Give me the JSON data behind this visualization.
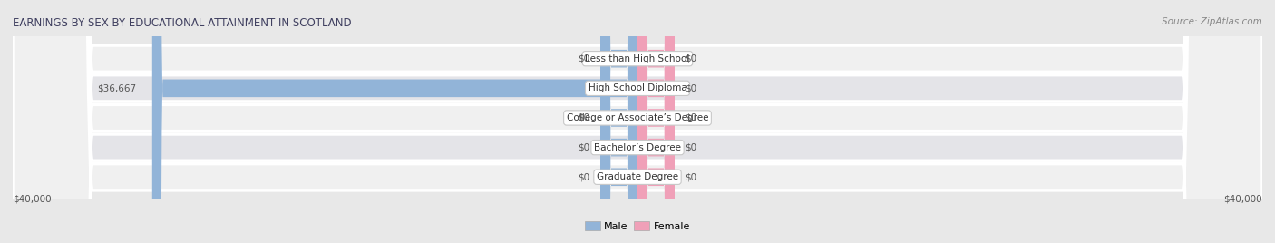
{
  "title": "EARNINGS BY SEX BY EDUCATIONAL ATTAINMENT IN SCOTLAND",
  "source": "Source: ZipAtlas.com",
  "categories": [
    "Less than High School",
    "High School Diploma",
    "College or Associate’s Degree",
    "Bachelor’s Degree",
    "Graduate Degree"
  ],
  "male_values": [
    0,
    36667,
    0,
    0,
    0
  ],
  "female_values": [
    0,
    0,
    0,
    0,
    0
  ],
  "male_color": "#92b4d8",
  "female_color": "#f0a0b8",
  "axis_limit": 40000,
  "bg_color": "#e8e8e8",
  "row_colors": [
    "#f0f0f0",
    "#e4e4e8"
  ],
  "title_color": "#404060",
  "source_color": "#888888",
  "label_color": "#555555",
  "stub_size": 2800,
  "title_fontsize": 8.5,
  "source_fontsize": 7.5,
  "cat_fontsize": 7.5,
  "val_fontsize": 7.5,
  "legend_fontsize": 8
}
